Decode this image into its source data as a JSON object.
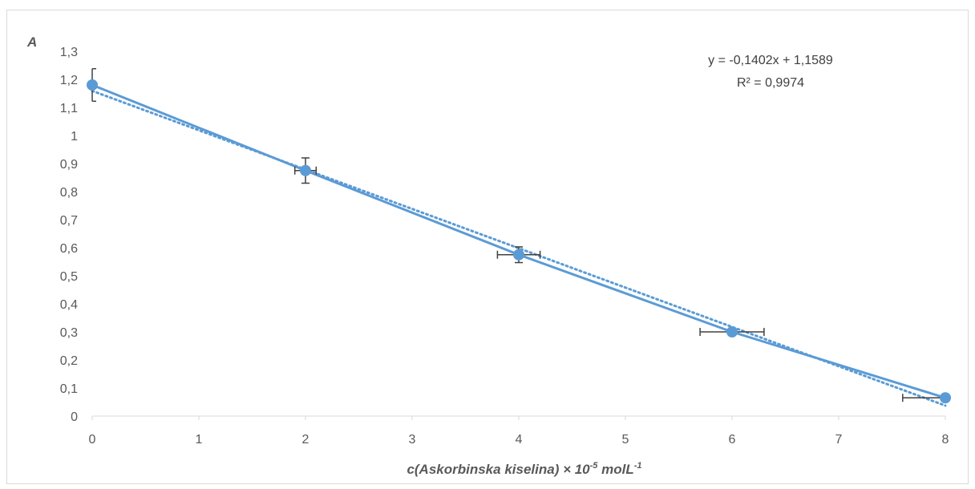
{
  "chart_data": {
    "type": "scatter",
    "ylabel": "A",
    "xlabel_main": "c(Askorbinska kiselina) × 10",
    "xlabel_exp": "-5",
    "xlabel_unit": " molL",
    "xlabel_unit_exp": "-1",
    "xlim": [
      0,
      8
    ],
    "ylim": [
      0,
      1.3
    ],
    "x_ticks": [
      "0",
      "1",
      "2",
      "3",
      "4",
      "5",
      "6",
      "7",
      "8"
    ],
    "y_ticks": [
      "0",
      "0,1",
      "0,2",
      "0,3",
      "0,4",
      "0,5",
      "0,6",
      "0,7",
      "0,8",
      "0,9",
      "1",
      "1,1",
      "1,2",
      "1,3"
    ],
    "series": [
      {
        "x": [
          0,
          2,
          4,
          6,
          8
        ],
        "y": [
          1.18,
          0.875,
          0.575,
          0.3,
          0.065
        ],
        "x_err": [
          0,
          0.1,
          0.2,
          0.3,
          0.4
        ],
        "y_err": [
          0.058,
          0.045,
          0.028,
          0,
          0
        ],
        "color": "#5b9bd5"
      }
    ],
    "trendline": {
      "type": "linear",
      "slope": -0.1402,
      "intercept": 1.1589,
      "style": "dotted",
      "equation": "y = -0,1402x + 1,1589",
      "r2_label": "R² = 0,9974"
    },
    "grid": false
  }
}
